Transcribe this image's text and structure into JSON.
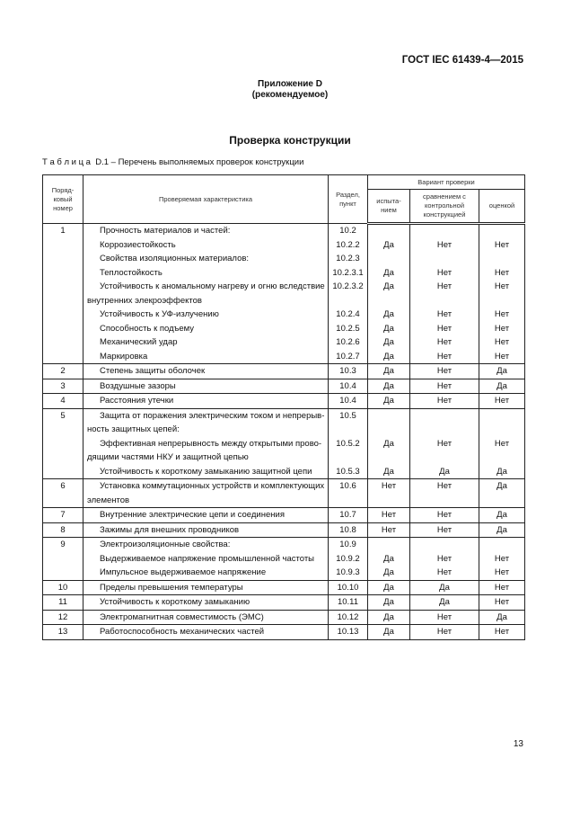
{
  "header": {
    "standard": "ГОСТ IEC 61439-4—2015"
  },
  "annex": {
    "title": "Приложение D",
    "status": "(рекомендуемое)"
  },
  "section_title": "Проверка конструкции",
  "caption": "Т а б л и ц а  D.1 – Перечень выполняемых проверок конструкции",
  "table": {
    "headers": {
      "num": "Поряд-ковый номер",
      "char": "Проверяемая характеристика",
      "clause": "Раздел, пункт",
      "variant": "Вариант проверки",
      "test": "испыта-нием",
      "compare": "сравнением с контрольной конструкцией",
      "assess": "оценкой"
    },
    "rows": [
      {
        "n": "1",
        "c": "Прочность материалов и частей:",
        "p": "10.2",
        "a": "",
        "b": "",
        "d": ""
      },
      {
        "n": "",
        "c": "Коррозиестойкость",
        "p": "10.2.2",
        "a": "Да",
        "b": "Нет",
        "d": "Нет"
      },
      {
        "n": "",
        "c": "Свойства изоляционных материалов:",
        "p": "10.2.3",
        "a": "",
        "b": "",
        "d": ""
      },
      {
        "n": "",
        "c": "Теплостойкость",
        "p": "10.2.3.1",
        "a": "Да",
        "b": "Нет",
        "d": "Нет"
      },
      {
        "n": "",
        "c": "Устойчивость к аномальному нагреву и огню вследствие внутренних элекроэффектов",
        "p": "10.2.3.2",
        "a": "Да",
        "b": "Нет",
        "d": "Нет"
      },
      {
        "n": "",
        "c": "Устойчивость к УФ-излучению",
        "p": "10.2.4",
        "a": "Да",
        "b": "Нет",
        "d": "Нет"
      },
      {
        "n": "",
        "c": "Способность к подъему",
        "p": "10.2.5",
        "a": "Да",
        "b": "Нет",
        "d": "Нет"
      },
      {
        "n": "",
        "c": "Механический удар",
        "p": "10.2.6",
        "a": "Да",
        "b": "Нет",
        "d": "Нет"
      },
      {
        "n": "",
        "c": "Маркировка",
        "p": "10.2.7",
        "a": "Да",
        "b": "Нет",
        "d": "Нет"
      },
      {
        "n": "2",
        "c": "Степень защиты оболочек",
        "p": "10.3",
        "a": "Да",
        "b": "Нет",
        "d": "Да"
      },
      {
        "n": "3",
        "c": "Воздушные зазоры",
        "p": "10.4",
        "a": "Да",
        "b": "Нет",
        "d": "Да"
      },
      {
        "n": "4",
        "c": "Расстояния утечки",
        "p": "10.4",
        "a": "Да",
        "b": "Нет",
        "d": "Нет"
      },
      {
        "n": "5",
        "c": "Защита от поражения электрическим током и непрерыв-ность защитных цепей:",
        "p": "10.5",
        "a": "",
        "b": "",
        "d": ""
      },
      {
        "n": "",
        "c": "Эффективная непрерывность между открытыми прово-дящими частями НКУ и защитной цепью",
        "p": "10.5.2",
        "a": "Да",
        "b": "Нет",
        "d": "Нет"
      },
      {
        "n": "",
        "c": "Устойчивость к короткому замыканию защитной цепи",
        "p": "10.5.3",
        "a": "Да",
        "b": "Да",
        "d": "Да"
      },
      {
        "n": "6",
        "c": "Установка коммутационных устройств и комплектующих элементов",
        "p": "10.6",
        "a": "Нет",
        "b": "Нет",
        "d": "Да"
      },
      {
        "n": "7",
        "c": "Внутренние электрические цепи и соединения",
        "p": "10.7",
        "a": "Нет",
        "b": "Нет",
        "d": "Да"
      },
      {
        "n": "8",
        "c": "Зажимы для внешних проводников",
        "p": "10.8",
        "a": "Нет",
        "b": "Нет",
        "d": "Да"
      },
      {
        "n": "9",
        "c": "Электроизоляционные свойства:",
        "p": "10.9",
        "a": "",
        "b": "",
        "d": ""
      },
      {
        "n": "",
        "c": "Выдерживаемое напряжение промышленной частоты",
        "p": "10.9.2",
        "a": "Да",
        "b": "Нет",
        "d": "Нет"
      },
      {
        "n": "",
        "c": "Импульсное выдерживаемое напряжение",
        "p": "10.9.3",
        "a": "Да",
        "b": "Нет",
        "d": "Нет"
      },
      {
        "n": "10",
        "c": "Пределы превышения температуры",
        "p": "10.10",
        "a": "Да",
        "b": "Да",
        "d": "Нет"
      },
      {
        "n": "11",
        "c": "Устойчивость к короткому замыканию",
        "p": "10.11",
        "a": "Да",
        "b": "Да",
        "d": "Нет"
      },
      {
        "n": "12",
        "c": "Электромагнитная совместимость (ЭМС)",
        "p": "10.12",
        "a": "Да",
        "b": "Нет",
        "d": "Да"
      },
      {
        "n": "13",
        "c": "Работоспособность механических частей",
        "p": "10.13",
        "a": "Да",
        "b": "Нет",
        "d": "Нет"
      }
    ]
  },
  "page_number": "13"
}
